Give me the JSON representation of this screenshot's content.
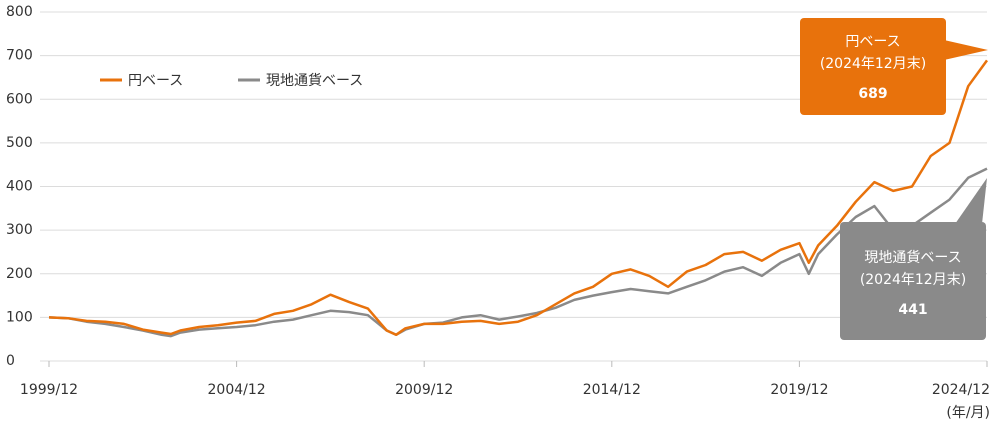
{
  "chart_data": {
    "type": "line",
    "x": [
      "1999/12",
      "2000/06",
      "2000/12",
      "2001/06",
      "2001/12",
      "2002/06",
      "2002/12",
      "2003/03",
      "2003/06",
      "2003/12",
      "2004/06",
      "2004/12",
      "2005/06",
      "2005/12",
      "2006/06",
      "2006/12",
      "2007/06",
      "2007/12",
      "2008/06",
      "2008/12",
      "2009/03",
      "2009/06",
      "2009/12",
      "2010/06",
      "2010/12",
      "2011/06",
      "2011/12",
      "2012/06",
      "2012/12",
      "2013/06",
      "2013/12",
      "2014/06",
      "2014/12",
      "2015/06",
      "2015/12",
      "2016/06",
      "2016/12",
      "2017/06",
      "2017/12",
      "2018/06",
      "2018/12",
      "2019/06",
      "2019/12",
      "2020/03",
      "2020/06",
      "2020/12",
      "2021/06",
      "2021/12",
      "2022/06",
      "2022/12",
      "2023/06",
      "2023/12",
      "2024/06",
      "2024/12"
    ],
    "series": [
      {
        "name": "円ベース",
        "color": "#e8720c",
        "values": [
          100,
          98,
          92,
          90,
          85,
          72,
          65,
          62,
          70,
          78,
          82,
          88,
          92,
          108,
          115,
          130,
          152,
          135,
          120,
          70,
          60,
          75,
          85,
          85,
          90,
          92,
          85,
          90,
          105,
          130,
          155,
          170,
          200,
          210,
          195,
          170,
          205,
          220,
          245,
          250,
          230,
          255,
          270,
          225,
          265,
          310,
          365,
          410,
          390,
          400,
          470,
          500,
          630,
          689
        ]
      },
      {
        "name": "現地通貨ベース",
        "color": "#8a8a8a",
        "values": [
          100,
          98,
          90,
          85,
          78,
          70,
          60,
          57,
          65,
          72,
          75,
          78,
          82,
          90,
          95,
          105,
          115,
          112,
          105,
          70,
          60,
          72,
          85,
          88,
          100,
          105,
          95,
          102,
          110,
          122,
          140,
          150,
          158,
          165,
          160,
          155,
          170,
          185,
          205,
          215,
          195,
          225,
          245,
          200,
          245,
          290,
          330,
          355,
          300,
          310,
          340,
          370,
          420,
          441
        ]
      }
    ],
    "ylim": [
      0,
      800
    ],
    "yticks": [
      0,
      100,
      200,
      300,
      400,
      500,
      600,
      700,
      800
    ],
    "xticks": [
      "1999/12",
      "2004/12",
      "2009/12",
      "2014/12",
      "2019/12",
      "2024/12"
    ],
    "x_label": "(年/月)",
    "annotation": "(2024年12月末)",
    "grid": true
  }
}
